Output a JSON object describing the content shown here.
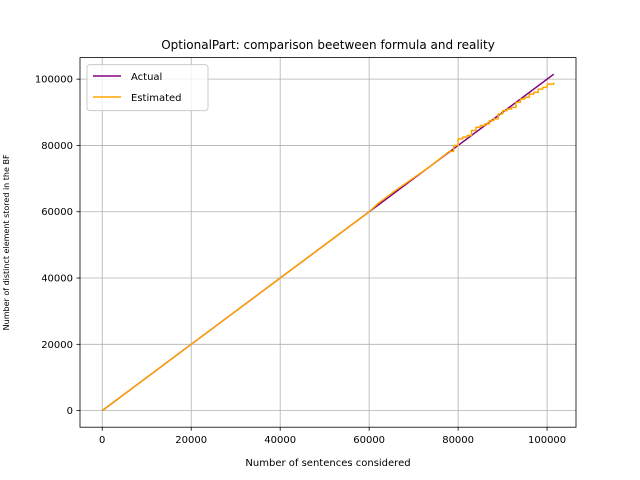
{
  "chart_data": {
    "type": "line",
    "title": "OptionalPart: comparison beetween formula and reality",
    "xlabel": "Number of sentences considered",
    "ylabel": "Number of distinct element stored in the BF",
    "xlim": [
      -5000,
      106500
    ],
    "ylim": [
      -5000,
      106500
    ],
    "xticks": [
      0,
      20000,
      40000,
      60000,
      80000,
      100000
    ],
    "yticks": [
      0,
      20000,
      40000,
      60000,
      80000,
      100000
    ],
    "xtick_labels": [
      "0",
      "20000",
      "40000",
      "60000",
      "80000",
      "100000"
    ],
    "ytick_labels": [
      "0",
      "20000",
      "40000",
      "60000",
      "80000",
      "100000"
    ],
    "grid": true,
    "legend_position": "top-left",
    "series": [
      {
        "name": "Actual",
        "color": "#800080",
        "x": [
          0,
          20000,
          40000,
          60000,
          80000,
          101500
        ],
        "y": [
          0,
          20000,
          40000,
          60000,
          80000,
          101500
        ]
      },
      {
        "name": "Estimated",
        "color": "#ffa500",
        "x": [
          0,
          20000,
          40000,
          60000,
          62000,
          66000,
          70000,
          74000,
          78000,
          79000,
          80000,
          81000,
          82000,
          83000,
          84000,
          85000,
          86000,
          87000,
          88000,
          89000,
          90000,
          91000,
          92000,
          93000,
          94000,
          95000,
          96000,
          97000,
          98000,
          99000,
          100000,
          101500
        ],
        "y": [
          0,
          20000,
          40000,
          60000,
          62500,
          66500,
          70200,
          74000,
          78200,
          80000,
          82000,
          82500,
          83000,
          84500,
          85500,
          86000,
          86500,
          87500,
          88000,
          89500,
          90500,
          91000,
          91500,
          93000,
          94000,
          94500,
          95500,
          96000,
          97000,
          97500,
          98500,
          99000
        ]
      }
    ]
  }
}
